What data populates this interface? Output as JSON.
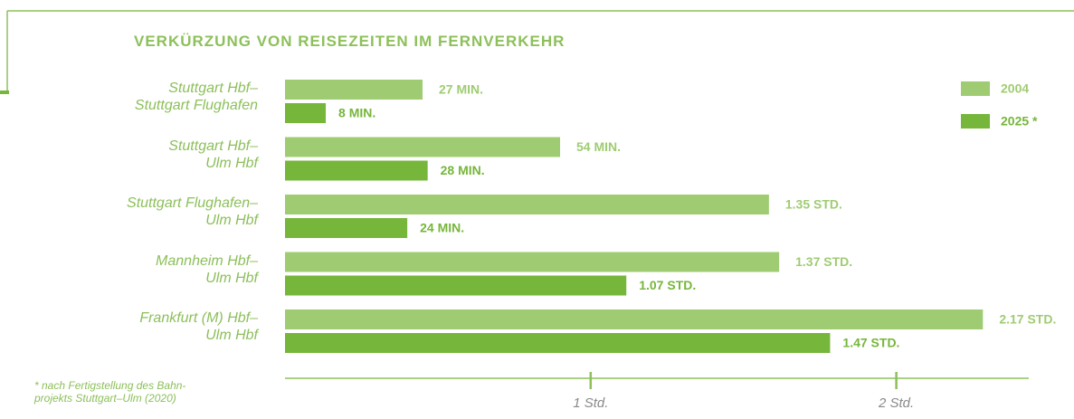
{
  "chart_data": {
    "type": "barh",
    "title": "VERKÜRZUNG VON REISEZEITEN IM FERNVERKEHR",
    "categories": [
      "Stuttgart Hbf–\nStuttgart Flughafen",
      "Stuttgart Hbf–\nUlm Hbf",
      "Stuttgart Flughafen–\nUlm Hbf",
      "Mannheim Hbf–\nUlm Hbf",
      "Frankfurt (M) Hbf–\nUlm Hbf"
    ],
    "series": [
      {
        "name": "2004",
        "color": "#9fcc72",
        "values": [
          27,
          54,
          95,
          97,
          137
        ],
        "value_labels": [
          "27 MIN.",
          "54 MIN.",
          "1.35 STD.",
          "1.37 STD.",
          "2.17 STD."
        ]
      },
      {
        "name": "2025 *",
        "color": "#76b63b",
        "values": [
          8,
          28,
          24,
          67,
          107
        ],
        "value_labels": [
          "8 MIN.",
          "28 MIN.",
          "24 MIN.",
          "1.07 STD.",
          "1.47 STD."
        ]
      }
    ],
    "xlim": [
      0,
      146
    ],
    "xticks": [
      {
        "value": 60,
        "label": "1 Std."
      },
      {
        "value": 120,
        "label": "2 Std."
      }
    ],
    "legend": "upper right",
    "annotations": [
      "* nach Fertigstellung des Bahn-\nprojekts Stuttgart–Ulm (2020)"
    ]
  }
}
